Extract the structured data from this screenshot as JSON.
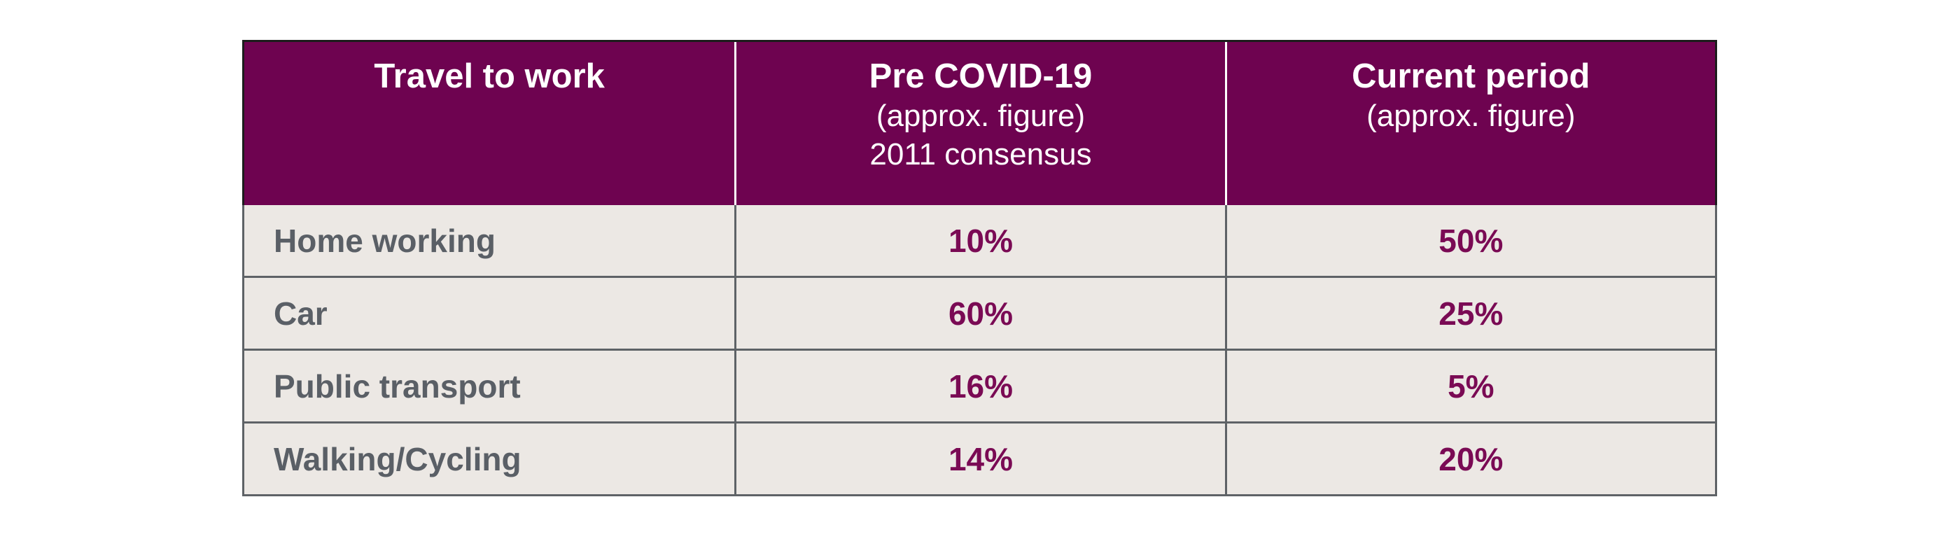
{
  "colors": {
    "header_bg": "#6E0350",
    "header_text": "#FFFFFF",
    "cell_bg": "#ECE8E4",
    "label_text": "#5A5F66",
    "value_text": "#7A0A54",
    "inner_border": "#5E6266",
    "outer_border": "#1C1C1C",
    "page_bg": "#FFFFFF"
  },
  "table": {
    "columns": [
      {
        "title": "Travel to work",
        "subtitle": "",
        "subtitle2": ""
      },
      {
        "title": "Pre COVID-19",
        "subtitle": "(approx. figure)",
        "subtitle2": "2011 consensus"
      },
      {
        "title": "Current period",
        "subtitle": "(approx. figure)",
        "subtitle2": ""
      }
    ],
    "rows": [
      {
        "label": "Home working",
        "pre": "10%",
        "current": "50%"
      },
      {
        "label": "Car",
        "pre": "60%",
        "current": "25%"
      },
      {
        "label": "Public transport",
        "pre": "16%",
        "current": "5%"
      },
      {
        "label": "Walking/Cycling",
        "pre": "14%",
        "current": "20%"
      }
    ]
  },
  "chart_data": {
    "type": "table",
    "title": "Travel to work",
    "columns": [
      "Travel to work",
      "Pre COVID-19 (approx. figure) 2011 consensus",
      "Current period (approx. figure)"
    ],
    "categories": [
      "Home working",
      "Car",
      "Public transport",
      "Walking/Cycling"
    ],
    "series": [
      {
        "name": "Pre COVID-19 (approx. figure) 2011 consensus",
        "values": [
          10,
          60,
          16,
          14
        ],
        "unit": "%"
      },
      {
        "name": "Current period (approx. figure)",
        "values": [
          50,
          25,
          5,
          20
        ],
        "unit": "%"
      }
    ]
  }
}
